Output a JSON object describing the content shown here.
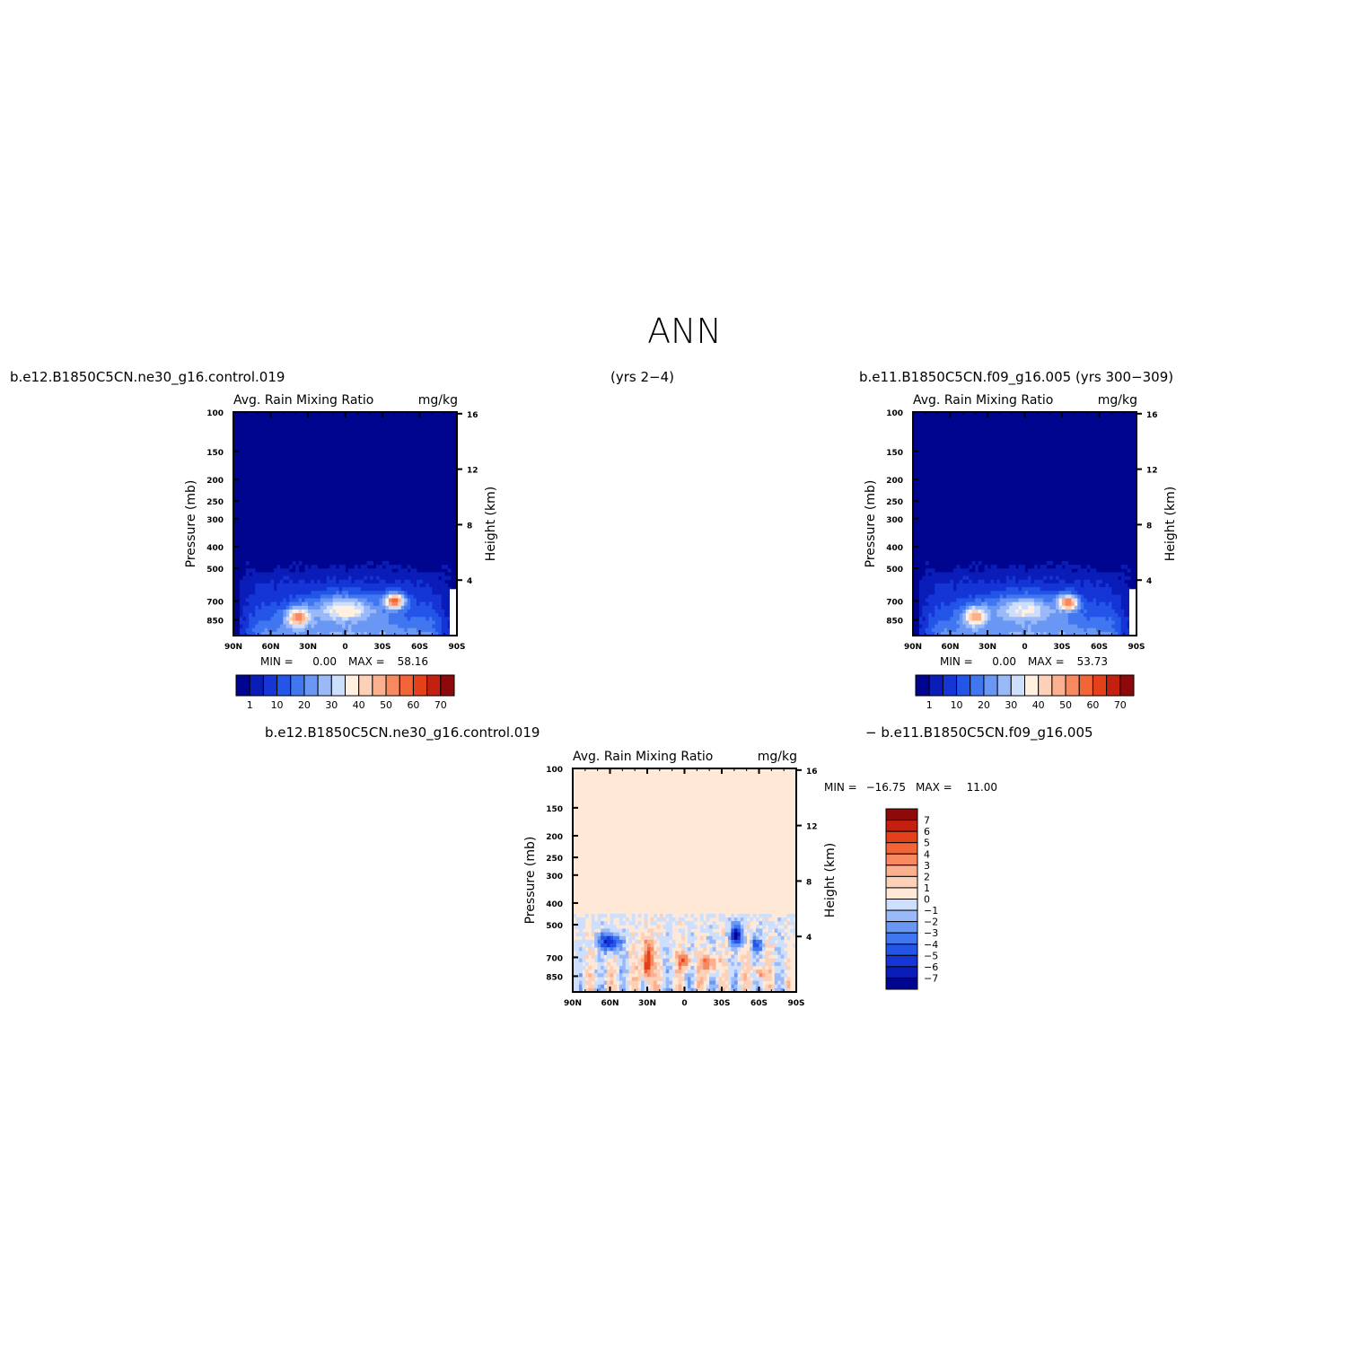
{
  "title": "ANN",
  "headers": {
    "left": "b.e12.B1850C5CN.ne30_g16.control.019",
    "center": "(yrs 2−4)",
    "right": "b.e11.B1850C5CN.f09_g16.005 (yrs 300−309)",
    "diff_left": "b.e12.B1850C5CN.ne30_g16.control.019",
    "diff_right": "− b.e11.B1850C5CN.f09_g16.005"
  },
  "colors": {
    "abs_scale": [
      "#00058f",
      "#0a1db8",
      "#1535d6",
      "#2255e8",
      "#4076f0",
      "#6a96f4",
      "#99b9f8",
      "#cddffc",
      "#fff0e0",
      "#fdd0b8",
      "#fbb090",
      "#f88860",
      "#f36536",
      "#e4401a",
      "#c42010",
      "#8e0a0a"
    ],
    "diff_scale": [
      "#00058f",
      "#0a1db8",
      "#1535d6",
      "#2255e8",
      "#4076f0",
      "#6a96f4",
      "#99b9f8",
      "#cddffc",
      "#ffe9d6",
      "#fdd0b8",
      "#fbb090",
      "#f88860",
      "#f36536",
      "#e4401a",
      "#c42010",
      "#8e0a0a"
    ]
  },
  "chart_data": [
    {
      "type": "heatmap",
      "id": "test",
      "title": "Avg. Rain Mixing Ratio",
      "units": "mg/kg",
      "ylabel": "Pressure (mb)",
      "y2label": "Height (km)",
      "x_ticks": [
        "90N",
        "60N",
        "30N",
        "0",
        "30S",
        "60S",
        "90S"
      ],
      "y_ticks": [
        "100",
        "150",
        "200",
        "250",
        "300",
        "400",
        "500",
        "700",
        "850"
      ],
      "y2_ticks": [
        "16",
        "12",
        "8",
        "4"
      ],
      "stats": {
        "min_label": "MIN =",
        "min": "0.00",
        "max_label": "MAX =",
        "max": "58.16"
      },
      "colorbar_labels": [
        "1",
        "10",
        "20",
        "30",
        "40",
        "50",
        "60",
        "70"
      ],
      "xlim": [
        -90,
        90
      ],
      "ylim_mb": [
        100,
        1000
      ],
      "features": [
        {
          "lat": -40,
          "p": 700,
          "value": 58,
          "wlat": 8,
          "wp": 55
        },
        {
          "lat": 38,
          "p": 830,
          "value": 45,
          "wlat": 9,
          "wp": 80
        },
        {
          "lat": 0,
          "p": 760,
          "value": 30,
          "wlat": 25,
          "wp": 100
        }
      ]
    },
    {
      "type": "heatmap",
      "id": "control",
      "title": "Avg. Rain Mixing Ratio",
      "units": "mg/kg",
      "ylabel": "Pressure (mb)",
      "y2label": "Height (km)",
      "x_ticks": [
        "90N",
        "60N",
        "30N",
        "0",
        "30S",
        "60S",
        "90S"
      ],
      "y_ticks": [
        "100",
        "150",
        "200",
        "250",
        "300",
        "400",
        "500",
        "700",
        "850"
      ],
      "y2_ticks": [
        "16",
        "12",
        "8",
        "4"
      ],
      "stats": {
        "min_label": "MIN =",
        "min": "0.00",
        "max_label": "MAX =",
        "max": "53.73"
      },
      "colorbar_labels": [
        "1",
        "10",
        "20",
        "30",
        "40",
        "50",
        "60",
        "70"
      ],
      "xlim": [
        -90,
        90
      ],
      "ylim_mb": [
        100,
        1000
      ],
      "features": [
        {
          "lat": -35,
          "p": 710,
          "value": 53,
          "wlat": 8,
          "wp": 55
        },
        {
          "lat": 40,
          "p": 820,
          "value": 42,
          "wlat": 9,
          "wp": 80
        },
        {
          "lat": 0,
          "p": 760,
          "value": 28,
          "wlat": 25,
          "wp": 100
        }
      ]
    },
    {
      "type": "heatmap",
      "id": "difference",
      "title": "Avg. Rain Mixing Ratio",
      "units": "mg/kg",
      "ylabel": "Pressure (mb)",
      "y2label": "Height (km)",
      "x_ticks": [
        "90N",
        "60N",
        "30N",
        "0",
        "30S",
        "60S",
        "90S"
      ],
      "y_ticks": [
        "100",
        "150",
        "200",
        "250",
        "300",
        "400",
        "500",
        "700",
        "850"
      ],
      "y2_ticks": [
        "16",
        "12",
        "8",
        "4"
      ],
      "stats": {
        "min_label": "MIN =",
        "min": "−16.75",
        "max_label": "MAX =",
        "max": "11.00"
      },
      "colorbar_labels": [
        "7",
        "6",
        "5",
        "4",
        "3",
        "2",
        "1",
        "0",
        "−1",
        "−2",
        "−3",
        "−4",
        "−5",
        "−6",
        "−7"
      ],
      "xlim": [
        -90,
        90
      ],
      "ylim_mb": [
        100,
        1000
      ],
      "features": [
        {
          "lat": 60,
          "p": 600,
          "value": -7,
          "wlat": 8,
          "wp": 55
        },
        {
          "lat": -42,
          "p": 560,
          "value": -7,
          "wlat": 5,
          "wp": 60
        },
        {
          "lat": -58,
          "p": 620,
          "value": -5,
          "wlat": 4,
          "wp": 45
        },
        {
          "lat": 30,
          "p": 740,
          "value": 7,
          "wlat": 4,
          "wp": 160
        },
        {
          "lat": 0,
          "p": 720,
          "value": 4,
          "wlat": 6,
          "wp": 60
        },
        {
          "lat": -20,
          "p": 750,
          "value": 5,
          "wlat": 6,
          "wp": 60
        },
        {
          "lat": -60,
          "p": 820,
          "value": 4,
          "wlat": 4,
          "wp": 50
        }
      ]
    }
  ]
}
